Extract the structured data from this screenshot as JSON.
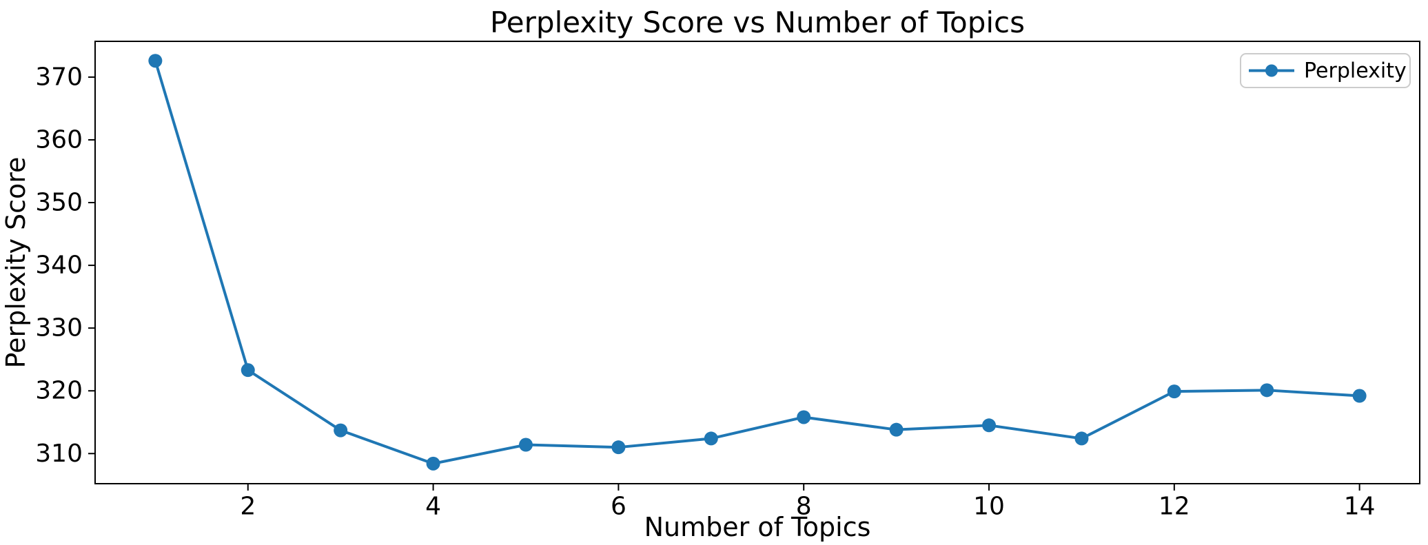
{
  "figure": {
    "background": "#ffffff"
  },
  "chart_data": {
    "type": "line",
    "title": "Perplexity Score vs Number of Topics",
    "xlabel": "Number of Topics",
    "ylabel": "Perplexity Score",
    "x": [
      1,
      2,
      3,
      4,
      5,
      6,
      7,
      8,
      9,
      10,
      11,
      12,
      13,
      14
    ],
    "series": [
      {
        "name": "Perplexity",
        "color": "#1f77b4",
        "marker": "circle",
        "values": [
          372.6,
          323.3,
          313.7,
          308.4,
          311.4,
          311.0,
          312.4,
          315.8,
          313.8,
          314.5,
          312.4,
          319.9,
          320.1,
          319.2
        ]
      }
    ],
    "xticks": [
      2,
      4,
      6,
      8,
      10,
      12,
      14
    ],
    "yticks": [
      310,
      320,
      330,
      340,
      350,
      360,
      370
    ],
    "xlim": [
      0.35,
      14.65
    ],
    "ylim": [
      305.2,
      375.7
    ],
    "grid": false,
    "legend": {
      "position": "upper-right",
      "label": "Perplexity",
      "border_color": "#cccccc"
    },
    "axis_color": "#000000"
  }
}
